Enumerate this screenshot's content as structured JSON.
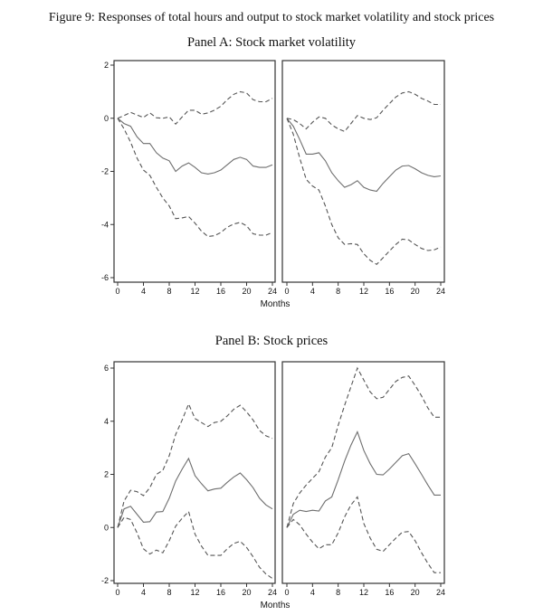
{
  "title": "Figure 9: Responses of total hours and output to stock market volatility and stock prices",
  "panels": [
    "Panel A: Stock market volatility",
    "Panel B: Stock prices"
  ],
  "colors": {
    "line": "#6e6e6e",
    "band": "#555555",
    "axis": "#333333"
  },
  "chart_data": [
    {
      "type": "line",
      "panel": 0,
      "position": "left",
      "xlabel": "",
      "xlim": [
        0,
        24
      ],
      "ylim": [
        -6,
        2
      ],
      "xticks": [
        0,
        4,
        8,
        12,
        16,
        20,
        24
      ],
      "yticks": [
        -6,
        -4,
        -2,
        0,
        2
      ],
      "series": [
        {
          "style": "dashed",
          "values": [
            0,
            0.1,
            0.22,
            0.12,
            0.03,
            0.2,
            0.02,
            0,
            0.05,
            -0.22,
            0.05,
            0.3,
            0.3,
            0.15,
            0.2,
            0.3,
            0.45,
            0.7,
            0.9,
            1.0,
            0.95,
            0.7,
            0.62,
            0.62,
            0.75
          ]
        },
        {
          "style": "solid",
          "values": [
            0,
            -0.2,
            -0.3,
            -0.7,
            -0.95,
            -0.95,
            -1.3,
            -1.5,
            -1.6,
            -2.0,
            -1.8,
            -1.68,
            -1.85,
            -2.05,
            -2.1,
            -2.05,
            -1.95,
            -1.75,
            -1.55,
            -1.47,
            -1.55,
            -1.8,
            -1.85,
            -1.85,
            -1.75
          ]
        },
        {
          "style": "dashed",
          "values": [
            0,
            -0.4,
            -0.9,
            -1.5,
            -1.95,
            -2.15,
            -2.6,
            -3.0,
            -3.3,
            -3.78,
            -3.75,
            -3.7,
            -3.95,
            -4.25,
            -4.45,
            -4.42,
            -4.3,
            -4.1,
            -3.98,
            -3.92,
            -4.05,
            -4.35,
            -4.4,
            -4.4,
            -4.3
          ]
        }
      ]
    },
    {
      "type": "line",
      "panel": 0,
      "position": "right",
      "xlabel": "Months",
      "xlim": [
        0,
        24
      ],
      "ylim": [
        -6,
        2
      ],
      "xticks": [
        0,
        4,
        8,
        12,
        16,
        20,
        24
      ],
      "yticks": [],
      "series": [
        {
          "style": "dashed",
          "values": [
            0,
            -0.05,
            -0.2,
            -0.4,
            -0.15,
            0.05,
            0,
            -0.25,
            -0.4,
            -0.5,
            -0.2,
            0.1,
            0,
            -0.05,
            0.02,
            0.3,
            0.55,
            0.8,
            0.95,
            1.0,
            0.9,
            0.75,
            0.65,
            0.52,
            0.52
          ]
        },
        {
          "style": "solid",
          "values": [
            0,
            -0.3,
            -0.8,
            -1.35,
            -1.35,
            -1.3,
            -1.6,
            -2.05,
            -2.35,
            -2.6,
            -2.5,
            -2.35,
            -2.6,
            -2.7,
            -2.75,
            -2.45,
            -2.2,
            -1.95,
            -1.8,
            -1.78,
            -1.9,
            -2.05,
            -2.15,
            -2.2,
            -2.17
          ]
        },
        {
          "style": "dashed",
          "values": [
            0,
            -0.6,
            -1.5,
            -2.3,
            -2.55,
            -2.7,
            -3.3,
            -4.0,
            -4.5,
            -4.75,
            -4.72,
            -4.75,
            -5.1,
            -5.35,
            -5.5,
            -5.25,
            -5.0,
            -4.75,
            -4.55,
            -4.58,
            -4.75,
            -4.9,
            -4.98,
            -4.95,
            -4.85
          ]
        }
      ]
    },
    {
      "type": "line",
      "panel": 1,
      "position": "left",
      "xlabel": "",
      "xlim": [
        0,
        24
      ],
      "ylim": [
        -2,
        6
      ],
      "xticks": [
        0,
        4,
        8,
        12,
        16,
        20,
        24
      ],
      "yticks": [
        -2,
        0,
        2,
        4,
        6
      ],
      "series": [
        {
          "style": "dashed",
          "values": [
            0,
            1.0,
            1.4,
            1.35,
            1.2,
            1.5,
            2.0,
            2.15,
            2.7,
            3.5,
            4.05,
            4.65,
            4.1,
            3.95,
            3.8,
            3.95,
            4.0,
            4.2,
            4.45,
            4.6,
            4.35,
            4.05,
            3.65,
            3.45,
            3.35
          ]
        },
        {
          "style": "solid",
          "values": [
            0,
            0.7,
            0.8,
            0.5,
            0.2,
            0.22,
            0.58,
            0.6,
            1.1,
            1.75,
            2.2,
            2.6,
            1.95,
            1.65,
            1.38,
            1.45,
            1.48,
            1.7,
            1.9,
            2.05,
            1.8,
            1.5,
            1.1,
            0.85,
            0.7
          ]
        },
        {
          "style": "dashed",
          "values": [
            0,
            0.38,
            0.3,
            -0.2,
            -0.8,
            -1.0,
            -0.85,
            -0.95,
            -0.5,
            0.05,
            0.35,
            0.6,
            -0.25,
            -0.7,
            -1.05,
            -1.05,
            -1.05,
            -0.8,
            -0.6,
            -0.52,
            -0.75,
            -1.1,
            -1.5,
            -1.75,
            -1.92
          ]
        }
      ]
    },
    {
      "type": "line",
      "panel": 1,
      "position": "right",
      "xlabel": "Months",
      "xlim": [
        0,
        24
      ],
      "ylim": [
        -2,
        6
      ],
      "xticks": [
        0,
        4,
        8,
        12,
        16,
        20,
        24
      ],
      "yticks": [],
      "series": [
        {
          "style": "dashed",
          "values": [
            0,
            0.9,
            1.3,
            1.6,
            1.85,
            2.1,
            2.65,
            3.0,
            3.85,
            4.6,
            5.3,
            6.0,
            5.55,
            5.1,
            4.85,
            4.9,
            5.2,
            5.5,
            5.65,
            5.7,
            5.35,
            4.95,
            4.5,
            4.15,
            4.15
          ]
        },
        {
          "style": "solid",
          "values": [
            0,
            0.5,
            0.65,
            0.6,
            0.65,
            0.62,
            1.0,
            1.15,
            1.8,
            2.5,
            3.1,
            3.6,
            2.9,
            2.4,
            2.0,
            1.98,
            2.2,
            2.45,
            2.7,
            2.78,
            2.4,
            2.0,
            1.6,
            1.22,
            1.22
          ]
        },
        {
          "style": "dashed",
          "values": [
            0,
            0.3,
            0.1,
            -0.25,
            -0.55,
            -0.8,
            -0.65,
            -0.65,
            -0.2,
            0.4,
            0.85,
            1.15,
            0.15,
            -0.4,
            -0.82,
            -0.9,
            -0.65,
            -0.4,
            -0.18,
            -0.15,
            -0.5,
            -0.95,
            -1.35,
            -1.7,
            -1.7
          ]
        }
      ]
    }
  ]
}
